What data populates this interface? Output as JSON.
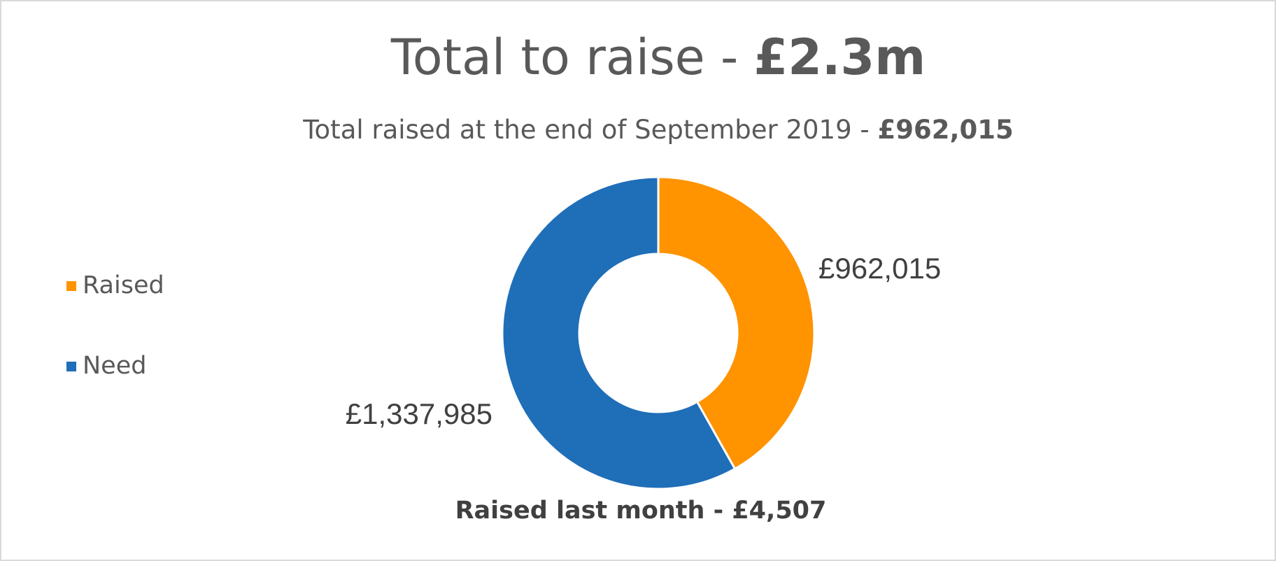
{
  "chart_data": {
    "type": "donut",
    "title": {
      "text": "Total to raise - ",
      "bold": "£2.3m"
    },
    "subtitle": {
      "text": "Total raised at the end of September 2019 - ",
      "bold": "£962,015"
    },
    "annotation": "Raised last month - £4,507",
    "categories": [
      "Raised",
      "Need"
    ],
    "values": [
      962015,
      1337985
    ],
    "value_labels": [
      "£962,015",
      "£1,337,985"
    ],
    "colors": [
      "#FF9300",
      "#1F6EB8"
    ]
  }
}
